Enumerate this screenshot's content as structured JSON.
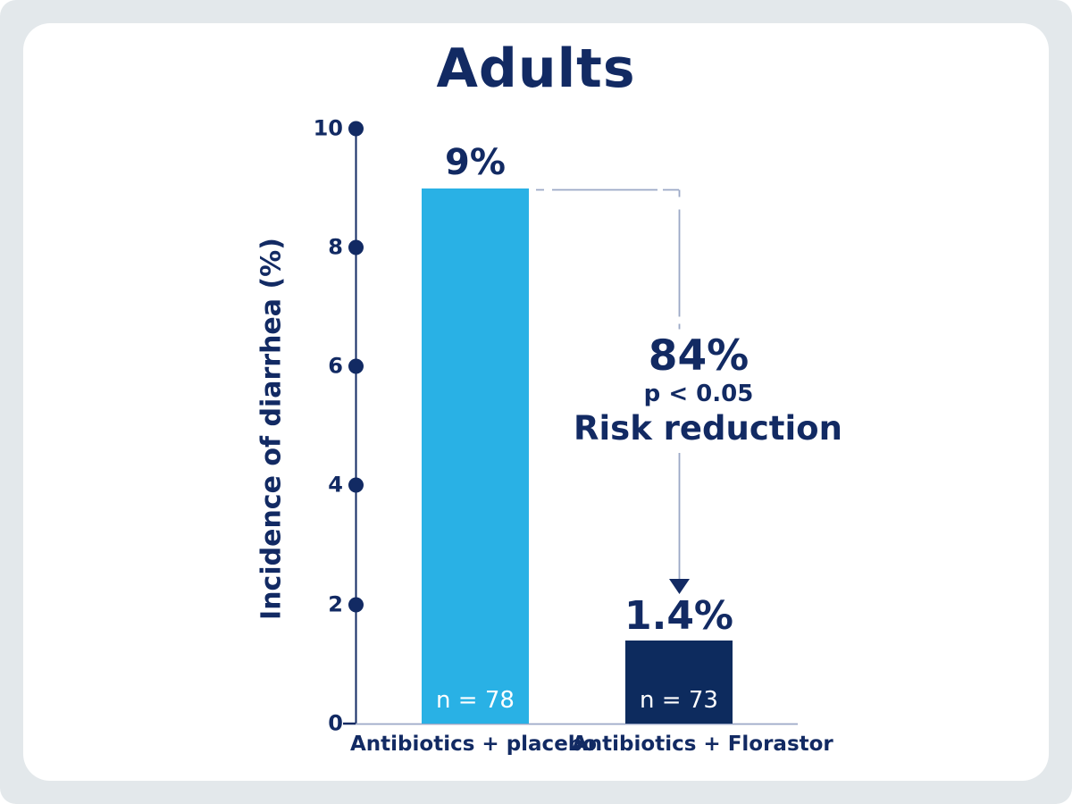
{
  "colors": {
    "background": "#e3e8eb",
    "card": "#ffffff",
    "navy_text": "#122a63",
    "bar_light_blue": "#29b1e5",
    "bar_dark_navy": "#0d2b5e",
    "connector_line": "#9ba8c6"
  },
  "chart_data": {
    "type": "bar",
    "title": "Adults",
    "ylabel": "Incidence of diarrhea (%)",
    "ylim": [
      0,
      10
    ],
    "ytick_values": [
      10,
      8,
      6,
      4,
      2,
      0
    ],
    "yticks": [
      "10",
      "8",
      "6",
      "4",
      "2",
      "0"
    ],
    "grid": false,
    "legend": "none",
    "categories": [
      "Antibiotics + placebo",
      "Antibiotics + Florastor"
    ],
    "values": [
      9,
      1.4
    ],
    "value_labels": [
      "9%",
      "1.4%"
    ],
    "sample_labels": [
      "n = 78",
      "n = 73"
    ],
    "bar_colors": [
      "#29b1e5",
      "#0d2b5e"
    ],
    "annotation": {
      "headline": "84%",
      "significance": "p < 0.05",
      "caption": "Risk reduction"
    }
  }
}
